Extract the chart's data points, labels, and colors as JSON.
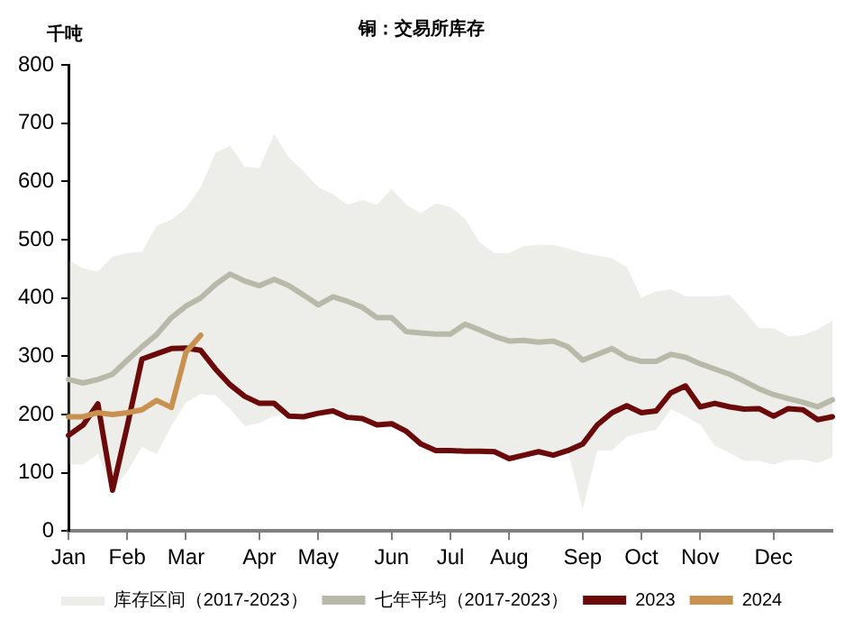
{
  "chart_data": {
    "type": "line",
    "title": "铜：交易所库存",
    "ylabel": "千吨",
    "annotations": [
      "库存区间（2017-2023）"
    ],
    "categories": [
      "Jan",
      null,
      null,
      null,
      "Feb",
      null,
      null,
      null,
      "Mar",
      null,
      null,
      null,
      null,
      "Apr",
      null,
      null,
      null,
      "May",
      null,
      null,
      null,
      null,
      "Jun",
      null,
      null,
      null,
      "Jul",
      null,
      null,
      null,
      "Aug",
      null,
      null,
      null,
      null,
      "Sep",
      null,
      null,
      null,
      "Oct",
      null,
      null,
      null,
      "Nov",
      null,
      null,
      null,
      null,
      "Dec",
      null,
      null,
      null,
      null
    ],
    "ylim": [
      0,
      800
    ],
    "yticks": [
      0,
      100,
      200,
      300,
      400,
      500,
      600,
      700,
      800
    ],
    "grid": false,
    "legend": "bottom",
    "marker": "none",
    "line_style": "solid",
    "series": [
      {
        "name": "七年平均（2017-2023）",
        "type": "line",
        "color": "#b9b9a9",
        "values": [
          260,
          254,
          260,
          269,
          293,
          316,
          337,
          366,
          386,
          400,
          423,
          441,
          429,
          421,
          432,
          421,
          405,
          388,
          402,
          394,
          384,
          366,
          366,
          342,
          340,
          338,
          338,
          355,
          345,
          334,
          326,
          327,
          324,
          326,
          316,
          293,
          303,
          313,
          298,
          291,
          291,
          303,
          298,
          287,
          278,
          269,
          257,
          244,
          234,
          227,
          221,
          213,
          225
        ],
        "upper": [
          465,
          451,
          445,
          471,
          477,
          479,
          524,
          534,
          554,
          590,
          649,
          661,
          625,
          623,
          681,
          641,
          617,
          590,
          578,
          560,
          568,
          560,
          587,
          560,
          545,
          562,
          556,
          536,
          495,
          477,
          477,
          489,
          491,
          491,
          485,
          477,
          473,
          468,
          453,
          400,
          411,
          415,
          403,
          403,
          403,
          405,
          378,
          348,
          348,
          334,
          336,
          346,
          361
        ],
        "lower": [
          114,
          114,
          132,
          70,
          102,
          144,
          132,
          180,
          221,
          235,
          233,
          209,
          180,
          185,
          197,
          201,
          200,
          202,
          206,
          195,
          193,
          182,
          184,
          171,
          149,
          138,
          138,
          137,
          137,
          136,
          124,
          130,
          136,
          130,
          138,
          37,
          138,
          138,
          162,
          168,
          174,
          209,
          197,
          182,
          146,
          134,
          120,
          120,
          114,
          122,
          122,
          117,
          126
        ]
      },
      {
        "name": "2023",
        "type": "line",
        "color": "#6b0a0a",
        "values": [
          164,
          182,
          218,
          70,
          180,
          295,
          304,
          313,
          314,
          310,
          278,
          251,
          231,
          219,
          219,
          197,
          196,
          202,
          206,
          195,
          193,
          182,
          184,
          171,
          149,
          138,
          138,
          137,
          137,
          136,
          124,
          130,
          136,
          130,
          138,
          149,
          182,
          203,
          215,
          203,
          206,
          237,
          249,
          213,
          219,
          213,
          209,
          210,
          197,
          210,
          208,
          191,
          196
        ]
      },
      {
        "name": "2024",
        "type": "line",
        "color": "#c8914f",
        "values": [
          196,
          196,
          203,
          200,
          203,
          208,
          224,
          212,
          307,
          336,
          null,
          null,
          null,
          null,
          null,
          null,
          null,
          null,
          null,
          null,
          null,
          null,
          null,
          null,
          null,
          null,
          null,
          null,
          null,
          null,
          null,
          null,
          null,
          null,
          null,
          null,
          null,
          null,
          null,
          null,
          null,
          null,
          null,
          null,
          null,
          null,
          null,
          null,
          null,
          null,
          null,
          null,
          null
        ]
      }
    ]
  }
}
